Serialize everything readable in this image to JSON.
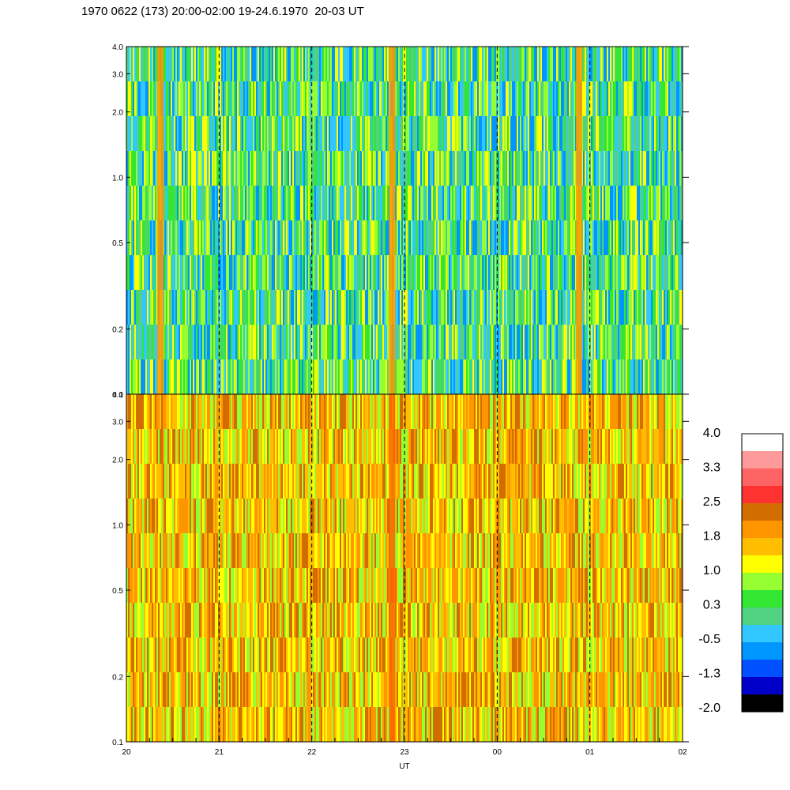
{
  "title": "1970 0622 (173) 20:00-02:00 19-24.6.1970  20-03 UT",
  "chart_data": [
    {
      "type": "heatmap",
      "panel": "upper",
      "x_ticks": [
        "20",
        "21",
        "22",
        "23",
        "00",
        "01",
        "02"
      ],
      "y_ticks": [
        "0.1",
        "0.2",
        "0.5",
        "1.0",
        "2.0",
        "3.0",
        "4.0"
      ],
      "ylim": [
        0.1,
        4.0
      ],
      "y_scale": "log",
      "dominant_levels": [
        "0.3",
        "1.0",
        "-0.5"
      ],
      "bright_columns_x": [
        "20:22",
        "22:52",
        "00:53"
      ]
    },
    {
      "type": "heatmap",
      "panel": "lower",
      "x_ticks": [
        "20",
        "21",
        "22",
        "23",
        "00",
        "01",
        "02"
      ],
      "y_ticks": [
        "0.1",
        "0.2",
        "0.5",
        "1.0",
        "2.0",
        "3.0",
        "4.0"
      ],
      "ylim": [
        0.1,
        4.0
      ],
      "y_scale": "log",
      "dominant_levels": [
        "1.8",
        "1.0",
        "2.5"
      ],
      "bright_columns_x": [
        "22:52"
      ]
    }
  ],
  "shared_x_axis": {
    "label": "UT",
    "ticks": [
      "20",
      "21",
      "22",
      "23",
      "00",
      "01",
      "02"
    ]
  },
  "colorbar": {
    "labels": [
      "4.0",
      "3.3",
      "2.5",
      "1.8",
      "1.0",
      "0.3",
      "-0.5",
      "-1.3",
      "-2.0"
    ],
    "colors": [
      "#ffffff",
      "#ff9a9a",
      "#ff6464",
      "#ff3232",
      "#d26e00",
      "#ff9600",
      "#ffbe00",
      "#ffff00",
      "#96ff32",
      "#32e632",
      "#50d282",
      "#32c8ff",
      "#0096ff",
      "#0050ff",
      "#0000c8",
      "#000000"
    ]
  },
  "palette": {
    "upper_base": [
      "#96ff32",
      "#32e632",
      "#ffff00",
      "#50d282",
      "#32c8ff",
      "#0096ff"
    ],
    "lower_base": [
      "#ffbe00",
      "#ff9600",
      "#ffff00",
      "#96ff32",
      "#d26e00"
    ]
  }
}
